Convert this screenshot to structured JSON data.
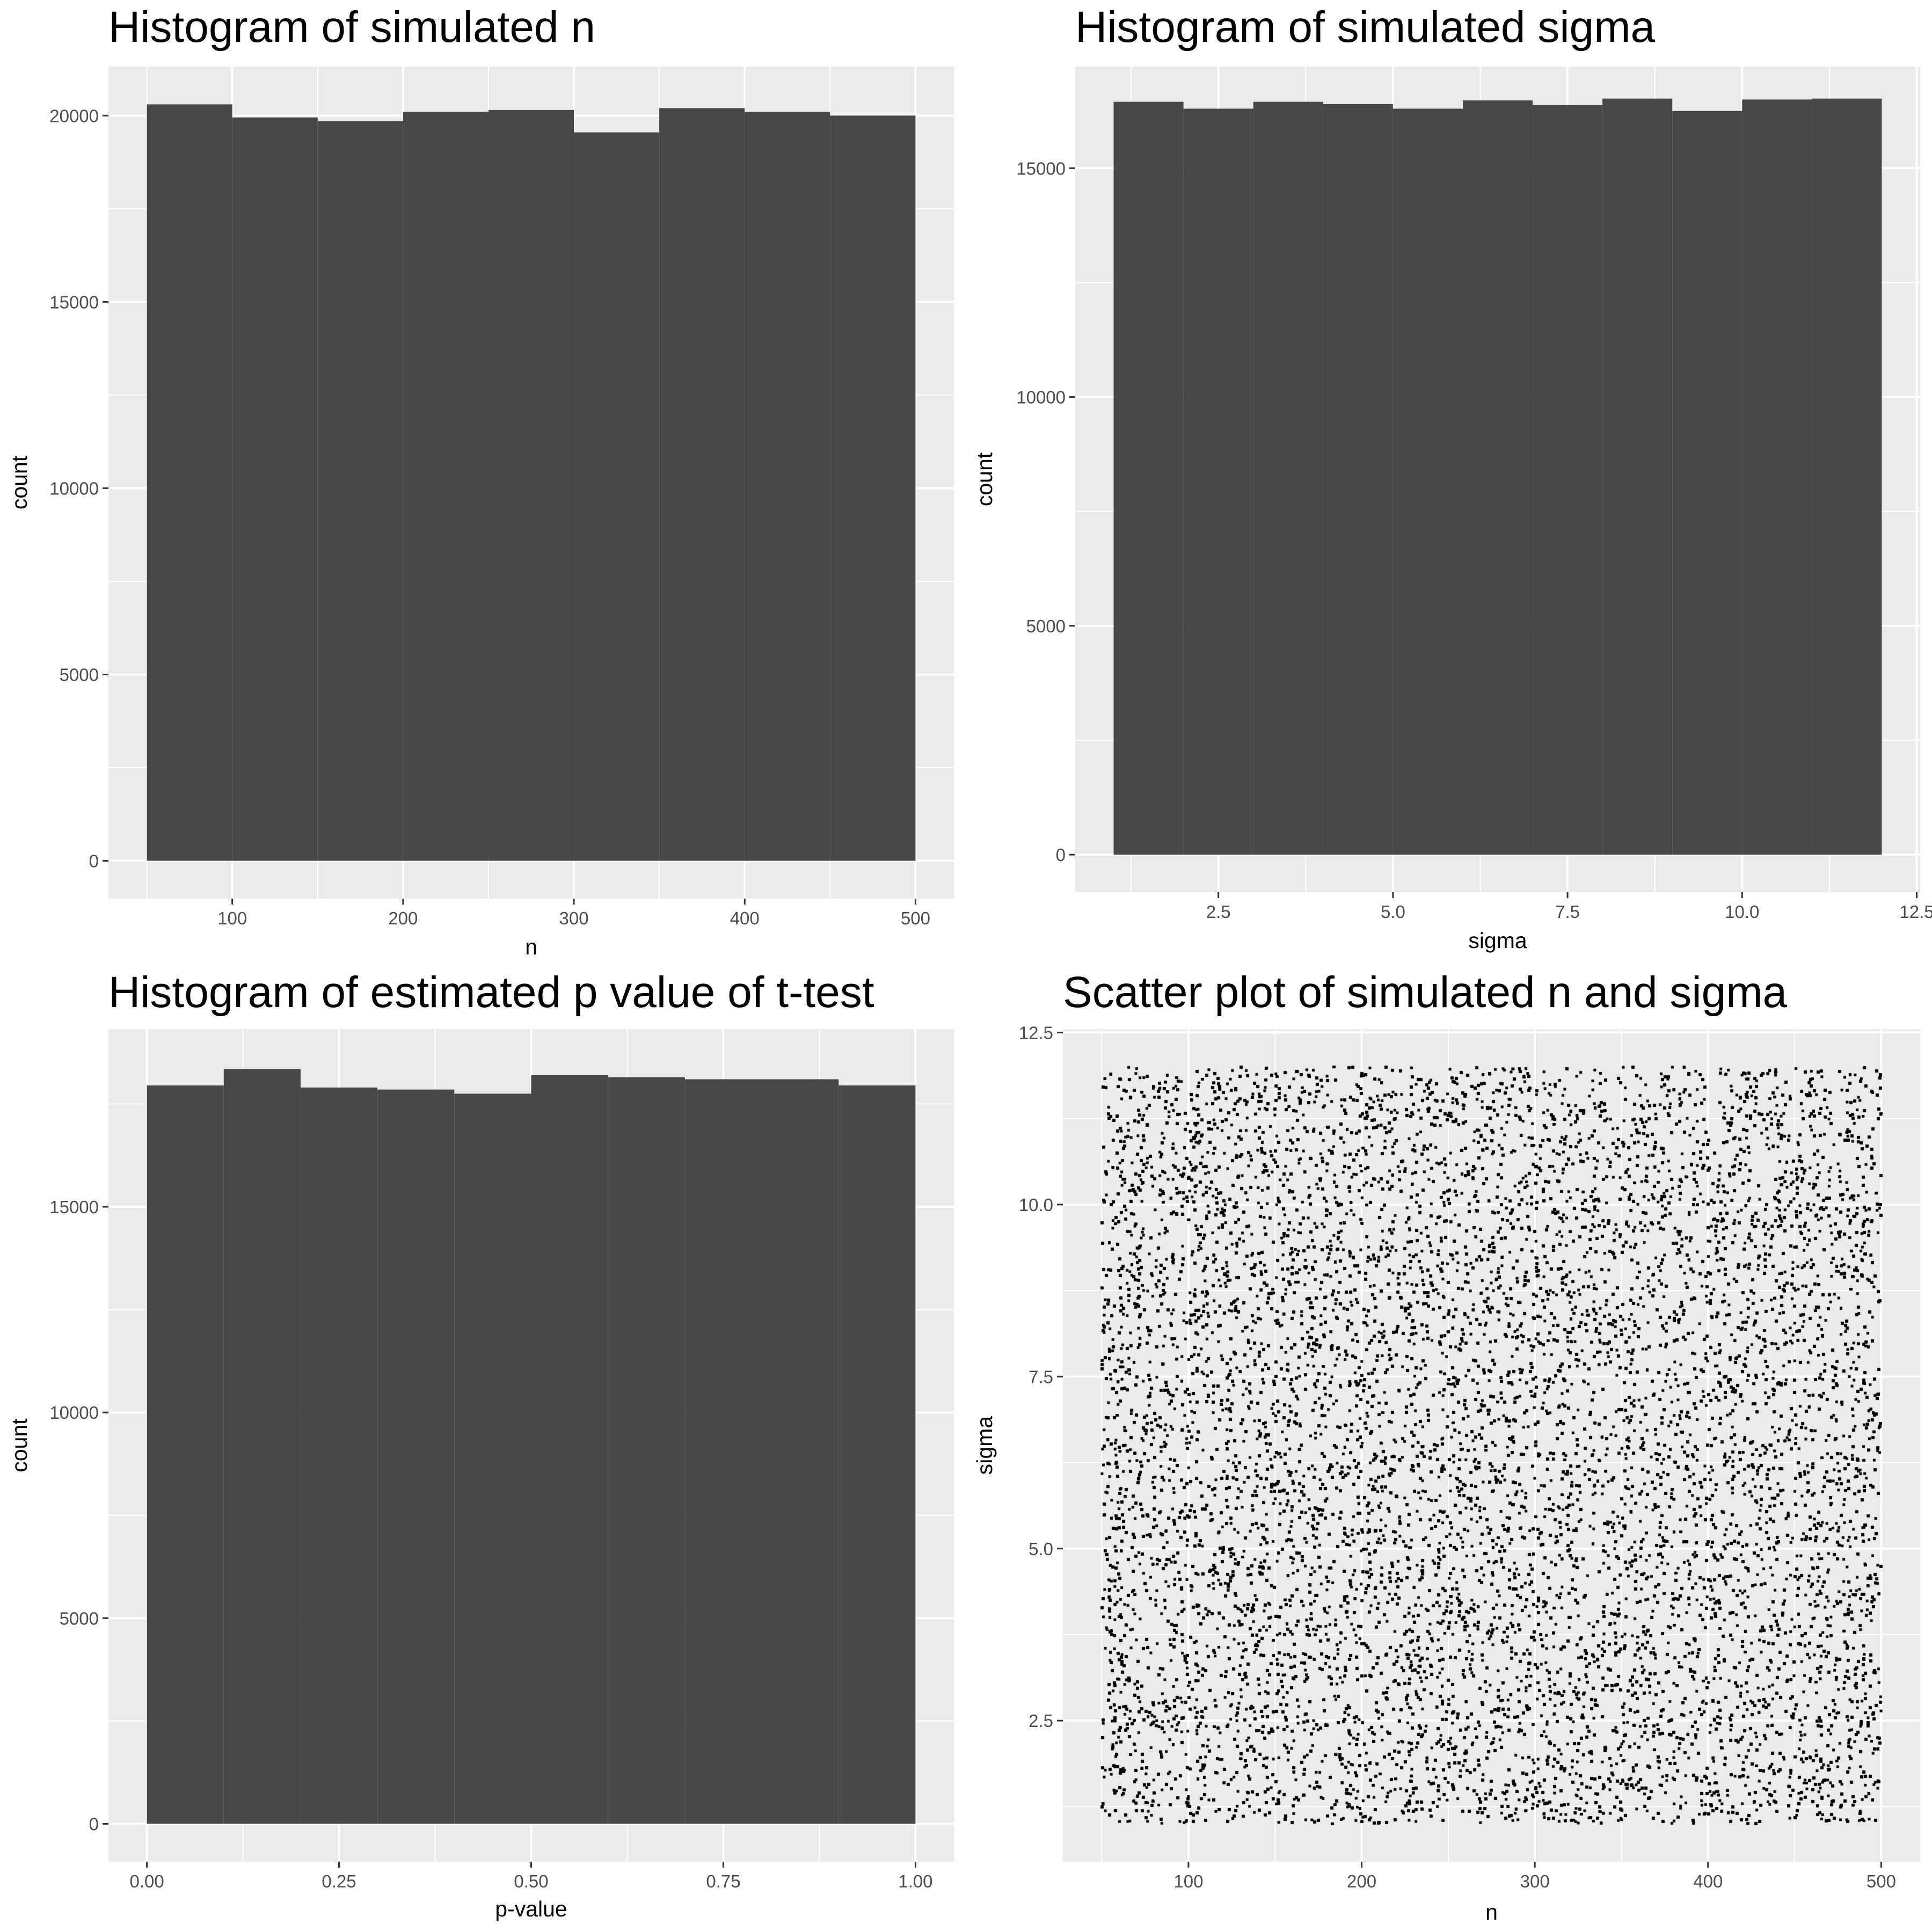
{
  "colors": {
    "panel_bg": "#ebebeb",
    "grid": "#ffffff",
    "bar_fill": "#474747",
    "point": "#000000",
    "tick_text": "#4d4d4d",
    "tick_mark": "#333333"
  },
  "chart_data": [
    {
      "type": "bar",
      "title": "Histogram of simulated n",
      "xlabel": "n",
      "ylabel": "count",
      "xlim": [
        27.5,
        522.5
      ],
      "ylim": [
        -1015,
        21315
      ],
      "xticks": [
        100,
        200,
        300,
        400,
        500
      ],
      "xtick_labels": [
        "100",
        "200",
        "300",
        "400",
        "500"
      ],
      "yticks": [
        0,
        5000,
        10000,
        15000,
        20000
      ],
      "ytick_labels": [
        "0",
        "5000",
        "10000",
        "15000",
        "20000"
      ],
      "bins": [
        [
          50,
          100
        ],
        [
          100,
          150
        ],
        [
          150,
          200
        ],
        [
          200,
          250
        ],
        [
          250,
          300
        ],
        [
          300,
          350
        ],
        [
          350,
          400
        ],
        [
          400,
          450
        ],
        [
          450,
          500
        ]
      ],
      "values": [
        20300,
        19950,
        19850,
        20100,
        20150,
        19550,
        20200,
        20100,
        20000
      ],
      "grid": true
    },
    {
      "type": "bar",
      "title": "Histogram of simulated sigma",
      "xlabel": "sigma",
      "ylabel": "count",
      "xlim": [
        0.45,
        12.55
      ],
      "ylim": [
        -820,
        17220
      ],
      "xticks": [
        2.5,
        5.0,
        7.5,
        10.0,
        12.5
      ],
      "xtick_labels": [
        "2.5",
        "5.0",
        "7.5",
        "10.0",
        "12.5"
      ],
      "yticks": [
        0,
        5000,
        10000,
        15000
      ],
      "ytick_labels": [
        "0",
        "5000",
        "10000",
        "15000"
      ],
      "bins": [
        [
          1,
          2
        ],
        [
          2,
          3
        ],
        [
          3,
          4
        ],
        [
          4,
          5
        ],
        [
          5,
          6
        ],
        [
          6,
          7
        ],
        [
          7,
          8
        ],
        [
          8,
          9
        ],
        [
          9,
          10
        ],
        [
          10,
          11
        ],
        [
          11,
          12
        ]
      ],
      "values": [
        16450,
        16300,
        16450,
        16400,
        16300,
        16480,
        16380,
        16520,
        16250,
        16500,
        16520
      ],
      "grid": true
    },
    {
      "type": "bar",
      "title": "Histogram of estimated p value of t-test",
      "xlabel": "p-value",
      "ylabel": "count",
      "xlim": [
        -0.05,
        1.05
      ],
      "ylim": [
        -920,
        19320
      ],
      "xticks": [
        0.0,
        0.25,
        0.5,
        0.75,
        1.0
      ],
      "xtick_labels": [
        "0.00",
        "0.25",
        "0.50",
        "0.75",
        "1.00"
      ],
      "yticks": [
        0,
        5000,
        10000,
        15000
      ],
      "ytick_labels": [
        "0",
        "5000",
        "10000",
        "15000"
      ],
      "bins": [
        [
          0.0,
          0.1
        ],
        [
          0.1,
          0.2
        ],
        [
          0.2,
          0.3
        ],
        [
          0.3,
          0.4
        ],
        [
          0.4,
          0.5
        ],
        [
          0.5,
          0.6
        ],
        [
          0.6,
          0.7
        ],
        [
          0.7,
          0.8
        ],
        [
          0.8,
          0.9
        ],
        [
          0.9,
          1.0
        ]
      ],
      "values": [
        17950,
        18350,
        17900,
        17850,
        17750,
        18200,
        18150,
        18100,
        18100,
        17950
      ],
      "grid": true
    },
    {
      "type": "scatter",
      "title": "Scatter plot of simulated n and sigma",
      "xlabel": "n",
      "ylabel": "sigma",
      "xlim": [
        27.5,
        522.5
      ],
      "ylim": [
        0.45,
        12.55
      ],
      "xticks": [
        100,
        200,
        300,
        400,
        500
      ],
      "xtick_labels": [
        "100",
        "200",
        "300",
        "400",
        "500"
      ],
      "yticks": [
        2.5,
        5.0,
        7.5,
        10.0,
        12.5
      ],
      "ytick_labels": [
        "2.5",
        "5.0",
        "7.5",
        "10.0",
        "12.5"
      ],
      "x_range": [
        50,
        500
      ],
      "y_range": [
        1,
        12
      ],
      "n_points_drawn": 160000,
      "distribution": "uniform",
      "grid": true
    }
  ]
}
